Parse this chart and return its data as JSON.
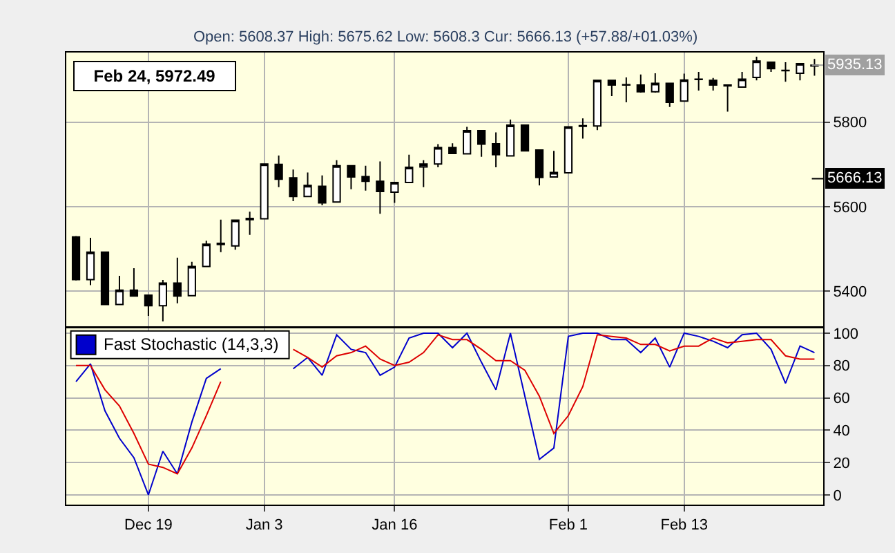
{
  "chart_data": [
    {
      "type": "candlestick",
      "subtitle": "Open: 5608.37 High: 5675.62 Low: 5608.3 Cur: 5666.13 (+57.88/+01.03%)",
      "annotations": [
        "Feb 24, 5972.49",
        {
          "text": "5935.13",
          "y": 5935.13
        },
        {
          "text": "5666.13",
          "y": 5666.13
        }
      ],
      "ohlc": [
        [
          5528,
          5530,
          5425,
          5427
        ],
        [
          5427,
          5526,
          5414,
          5492
        ],
        [
          5492,
          5492,
          5368,
          5368
        ],
        [
          5368,
          5436,
          5368,
          5402
        ],
        [
          5402,
          5454,
          5388,
          5388
        ],
        [
          5390,
          5390,
          5341,
          5365
        ],
        [
          5365,
          5426,
          5328,
          5419
        ],
        [
          5419,
          5479,
          5371,
          5388
        ],
        [
          5389,
          5469,
          5389,
          5458
        ],
        [
          5458,
          5519,
          5458,
          5511
        ],
        [
          5513,
          5569,
          5492,
          5510
        ],
        [
          5507,
          5568,
          5498,
          5568
        ],
        [
          5569,
          5588,
          5533,
          5572
        ],
        [
          5571,
          5701,
          5571,
          5701
        ],
        [
          5700,
          5721,
          5646,
          5665
        ],
        [
          5668,
          5688,
          5613,
          5624
        ],
        [
          5624,
          5681,
          5624,
          5650
        ],
        [
          5648,
          5674,
          5603,
          5609
        ],
        [
          5611,
          5710,
          5611,
          5697
        ],
        [
          5697,
          5697,
          5641,
          5670
        ],
        [
          5671,
          5697,
          5638,
          5660
        ],
        [
          5660,
          5707,
          5583,
          5636
        ],
        [
          5634,
          5657,
          5609,
          5657
        ],
        [
          5657,
          5723,
          5657,
          5693
        ],
        [
          5694,
          5710,
          5646,
          5701
        ],
        [
          5701,
          5748,
          5693,
          5740
        ],
        [
          5740,
          5750,
          5725,
          5726
        ],
        [
          5725,
          5789,
          5725,
          5780
        ],
        [
          5780,
          5780,
          5718,
          5748
        ],
        [
          5749,
          5776,
          5693,
          5723
        ],
        [
          5720,
          5806,
          5720,
          5793
        ],
        [
          5793,
          5793,
          5732,
          5732
        ],
        [
          5734,
          5734,
          5650,
          5669
        ],
        [
          5670,
          5732,
          5670,
          5681
        ],
        [
          5680,
          5789,
          5680,
          5789
        ],
        [
          5790,
          5809,
          5761,
          5792
        ],
        [
          5791,
          5899,
          5781,
          5899
        ],
        [
          5899,
          5899,
          5862,
          5888
        ],
        [
          5888,
          5906,
          5847,
          5889
        ],
        [
          5888,
          5913,
          5870,
          5872
        ],
        [
          5872,
          5916,
          5870,
          5892
        ],
        [
          5892,
          5892,
          5836,
          5847
        ],
        [
          5850,
          5915,
          5850,
          5900
        ],
        [
          5901,
          5919,
          5875,
          5902
        ],
        [
          5899,
          5905,
          5875,
          5888
        ],
        [
          5888,
          5888,
          5825,
          5886
        ],
        [
          5883,
          5919,
          5883,
          5902
        ],
        [
          5906,
          5955,
          5899,
          5945
        ],
        [
          5942,
          5942,
          5919,
          5927
        ],
        [
          5923,
          5942,
          5896,
          5922
        ],
        [
          5916,
          5939,
          5899,
          5939
        ],
        [
          5933,
          5950,
          5910,
          5935
        ]
      ],
      "ylim": [
        5317,
        5965
      ],
      "yticks": [
        5400,
        5600,
        5800
      ],
      "grid": true,
      "tick_labels": "y"
    },
    {
      "type": "line",
      "categories": [
        null,
        null,
        null,
        null,
        null,
        "Dec 19",
        null,
        null,
        null,
        null,
        null,
        null,
        null,
        "Jan 3",
        null,
        null,
        null,
        null,
        null,
        null,
        null,
        null,
        "Jan 16",
        null,
        null,
        null,
        null,
        null,
        null,
        null,
        null,
        null,
        null,
        null,
        "Feb 1",
        null,
        null,
        null,
        null,
        null,
        null,
        null,
        "Feb 13",
        null,
        null,
        null,
        null,
        null,
        null,
        null,
        null,
        null
      ],
      "series": [
        {
          "name": "Fast Stochastic (14,3,3)",
          "color": "#0000cc",
          "values": [
            70,
            81,
            52,
            35,
            23,
            0,
            27,
            13,
            45,
            72,
            78,
            null,
            null,
            null,
            null,
            78,
            85,
            74,
            99,
            90,
            88,
            74,
            79,
            97,
            100,
            100,
            91,
            100,
            82,
            65,
            100,
            61,
            22,
            29,
            98,
            100,
            100,
            96,
            96,
            88,
            97,
            79,
            100,
            98,
            95,
            91,
            99,
            100,
            90,
            69,
            92,
            88
          ]
        },
        {
          "color": "#dd0000",
          "values": [
            80,
            80,
            65,
            55,
            38,
            19,
            17,
            13,
            29,
            49,
            70,
            null,
            null,
            null,
            null,
            90,
            85,
            79,
            86,
            88,
            92,
            84,
            80,
            82,
            88,
            99,
            96,
            96,
            90,
            83,
            83,
            77,
            61,
            38,
            49,
            67,
            99,
            98,
            97,
            93,
            93,
            89,
            92,
            92,
            97,
            94,
            95,
            96,
            96,
            86,
            84,
            84
          ]
        }
      ],
      "ylim": [
        -6,
        103
      ],
      "yticks": [
        0,
        20,
        40,
        60,
        80,
        100
      ],
      "legend": "top left",
      "grid": true
    }
  ]
}
